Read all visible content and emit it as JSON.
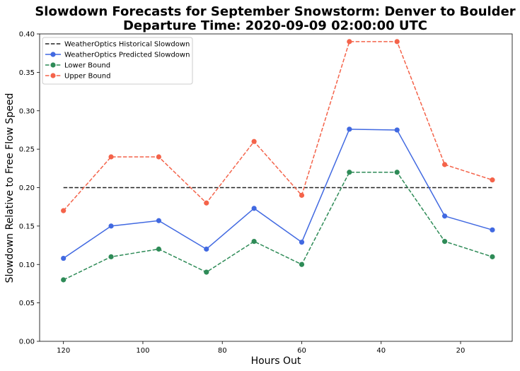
{
  "chart_data": {
    "type": "line",
    "title_line1": "Slowdown Forecasts for September Snowstorm: Denver to Boulder",
    "title_line2": "Departure Time: 2020-09-09 02:00:00 UTC",
    "xlabel": "Hours Out",
    "ylabel": "Slowdown Relative to Free Flow Speed",
    "x_reversed": true,
    "xlim": [
      126,
      7
    ],
    "ylim": [
      0.0,
      0.4
    ],
    "x_ticks": [
      120,
      100,
      80,
      60,
      40,
      20
    ],
    "y_ticks": [
      0.0,
      0.05,
      0.1,
      0.15,
      0.2,
      0.25,
      0.3,
      0.35,
      0.4
    ],
    "x_tick_labels": [
      "120",
      "100",
      "80",
      "60",
      "40",
      "20"
    ],
    "y_tick_labels": [
      "0.00",
      "0.05",
      "0.10",
      "0.15",
      "0.20",
      "0.25",
      "0.30",
      "0.35",
      "0.40"
    ],
    "legend_position": "top-left",
    "grid": false,
    "x": [
      120,
      108,
      96,
      84,
      72,
      60,
      48,
      36,
      24,
      12
    ],
    "series": [
      {
        "name": "WeatherOptics Historical Slowdown",
        "color": "#222222",
        "dashed": true,
        "markers": false,
        "values": [
          0.2,
          0.2,
          0.2,
          0.2,
          0.2,
          0.2,
          0.2,
          0.2,
          0.2,
          0.2
        ]
      },
      {
        "name": "WeatherOptics Predicted Slowdown",
        "color": "#4169e1",
        "dashed": false,
        "markers": true,
        "values": [
          0.108,
          0.15,
          0.157,
          0.12,
          0.173,
          0.129,
          0.276,
          0.275,
          0.163,
          0.145
        ]
      },
      {
        "name": "Lower Bound",
        "color": "#2e8b57",
        "dashed": true,
        "markers": true,
        "values": [
          0.08,
          0.11,
          0.12,
          0.09,
          0.13,
          0.1,
          0.22,
          0.22,
          0.13,
          0.11
        ]
      },
      {
        "name": "Upper Bound",
        "color": "#f4634a",
        "dashed": true,
        "markers": true,
        "values": [
          0.17,
          0.24,
          0.24,
          0.18,
          0.26,
          0.19,
          0.39,
          0.39,
          0.23,
          0.21
        ]
      }
    ]
  }
}
